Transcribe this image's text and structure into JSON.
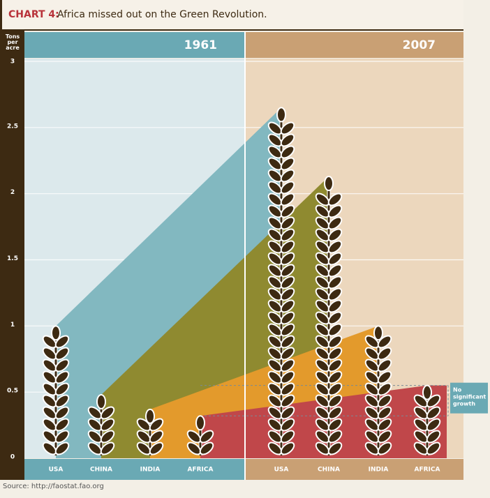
{
  "chart_data": {
    "type": "pictograph",
    "title_label": "CHART 4:",
    "title": "Africa missed out on the Green Revolution.",
    "y_label": "Tons per acre",
    "categories": [
      "USA",
      "CHINA",
      "INDIA",
      "AFRICA"
    ],
    "category_colors": [
      "#82b8c0",
      "#8f8a30",
      "#e39a2c",
      "#c0474a"
    ],
    "series": [
      {
        "name": "1961",
        "color": "#3d2a12",
        "values": [
          1.0,
          0.48,
          0.37,
          0.32
        ]
      },
      {
        "name": "2007",
        "color": "#3d2a12",
        "values": [
          2.65,
          2.13,
          1.0,
          0.55
        ]
      }
    ],
    "ylim": [
      0,
      3
    ],
    "yticks": [
      0,
      0.5,
      1,
      1.5,
      2,
      2.5,
      3
    ],
    "grid": true,
    "annotation": "No significant growth",
    "source": "Source: http://faostat.fao.org"
  }
}
